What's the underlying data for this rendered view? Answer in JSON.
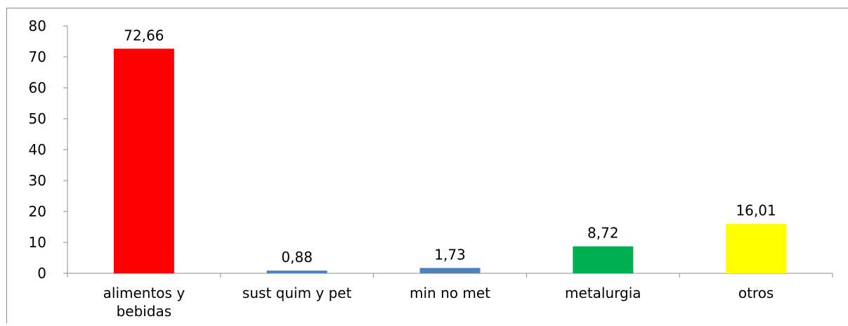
{
  "chart_data": {
    "type": "bar",
    "categories": [
      "alimentos y\nbebidas",
      "sust quim y pet",
      "min no met",
      "metalurgia",
      "otros"
    ],
    "values": [
      72.66,
      0.88,
      1.73,
      8.72,
      16.01
    ],
    "value_labels": [
      "72,66",
      "0,88",
      "1,73",
      "8,72",
      "16,01"
    ],
    "colors": [
      "#ff0000",
      "#4f81bd",
      "#4f81bd",
      "#00b050",
      "#ffff00"
    ],
    "title": "",
    "xlabel": "",
    "ylabel": "",
    "ylim": [
      0,
      80
    ],
    "yticks": [
      0,
      10,
      20,
      30,
      40,
      50,
      60,
      70,
      80
    ],
    "grid": false,
    "legend": "none"
  }
}
